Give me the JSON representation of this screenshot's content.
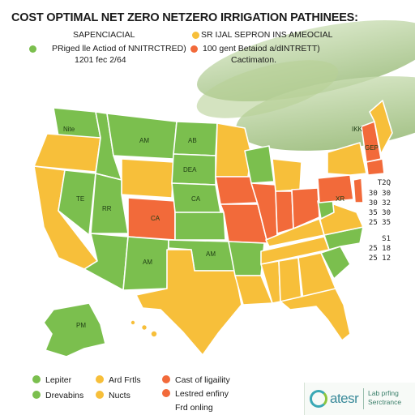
{
  "header": {
    "title": "COST OPTIMAL NET ZERO NETZERO IRRIGATION PATHINEES:",
    "left_caption": "SAPENCIACIAL",
    "right_caption": "SR IJAL SEPRON INS AMEOCIAL",
    "left_key": "PRiged lle Actiod of NNITRCTRED)",
    "left_key_sub": "1201 fec 2/64",
    "right_key": "100 gent Betaiod a/dINTRETT)",
    "right_key_sub": "Cactimaton."
  },
  "colors": {
    "green": "#7bbf4e",
    "yellow": "#f7bf3a",
    "orange": "#f26a3a",
    "border": "#ffffff",
    "leaf": "#a9c98a"
  },
  "map_labels": {
    "pnw": "Nite",
    "mt": "AM",
    "nd": "AB",
    "sd": "DEA",
    "ne": "CA",
    "ut": "RR",
    "id": "TE",
    "ks": "CA",
    "nm": "AM",
    "ok": "AM",
    "ma": "IKK",
    "ny": "GEP",
    "de": "XR",
    "ak": "PM"
  },
  "scale_values": [
    "T2Q",
    "30 30",
    "30 32",
    "35 30",
    "25 35",
    "S1",
    "25 18",
    "25 12"
  ],
  "legend": [
    {
      "label": "Lepiter",
      "color": "#7bbf4e"
    },
    {
      "label": "Drevabins",
      "color": "#7bbf4e"
    },
    {
      "label": "Ard Frtls",
      "color": "#f7bf3a"
    },
    {
      "label": "Nucts",
      "color": "#f7bf3a"
    },
    {
      "label": "Cast of ligaility",
      "color": "#f26a3a"
    },
    {
      "label": "Lestred enfiny",
      "color": "#f26a3a"
    },
    {
      "label": "Frd onling",
      "color": "#f26a3a"
    }
  ],
  "brand": {
    "name": "atesr",
    "tagline_1": "Lab prfing",
    "tagline_2": "Serctrance"
  }
}
